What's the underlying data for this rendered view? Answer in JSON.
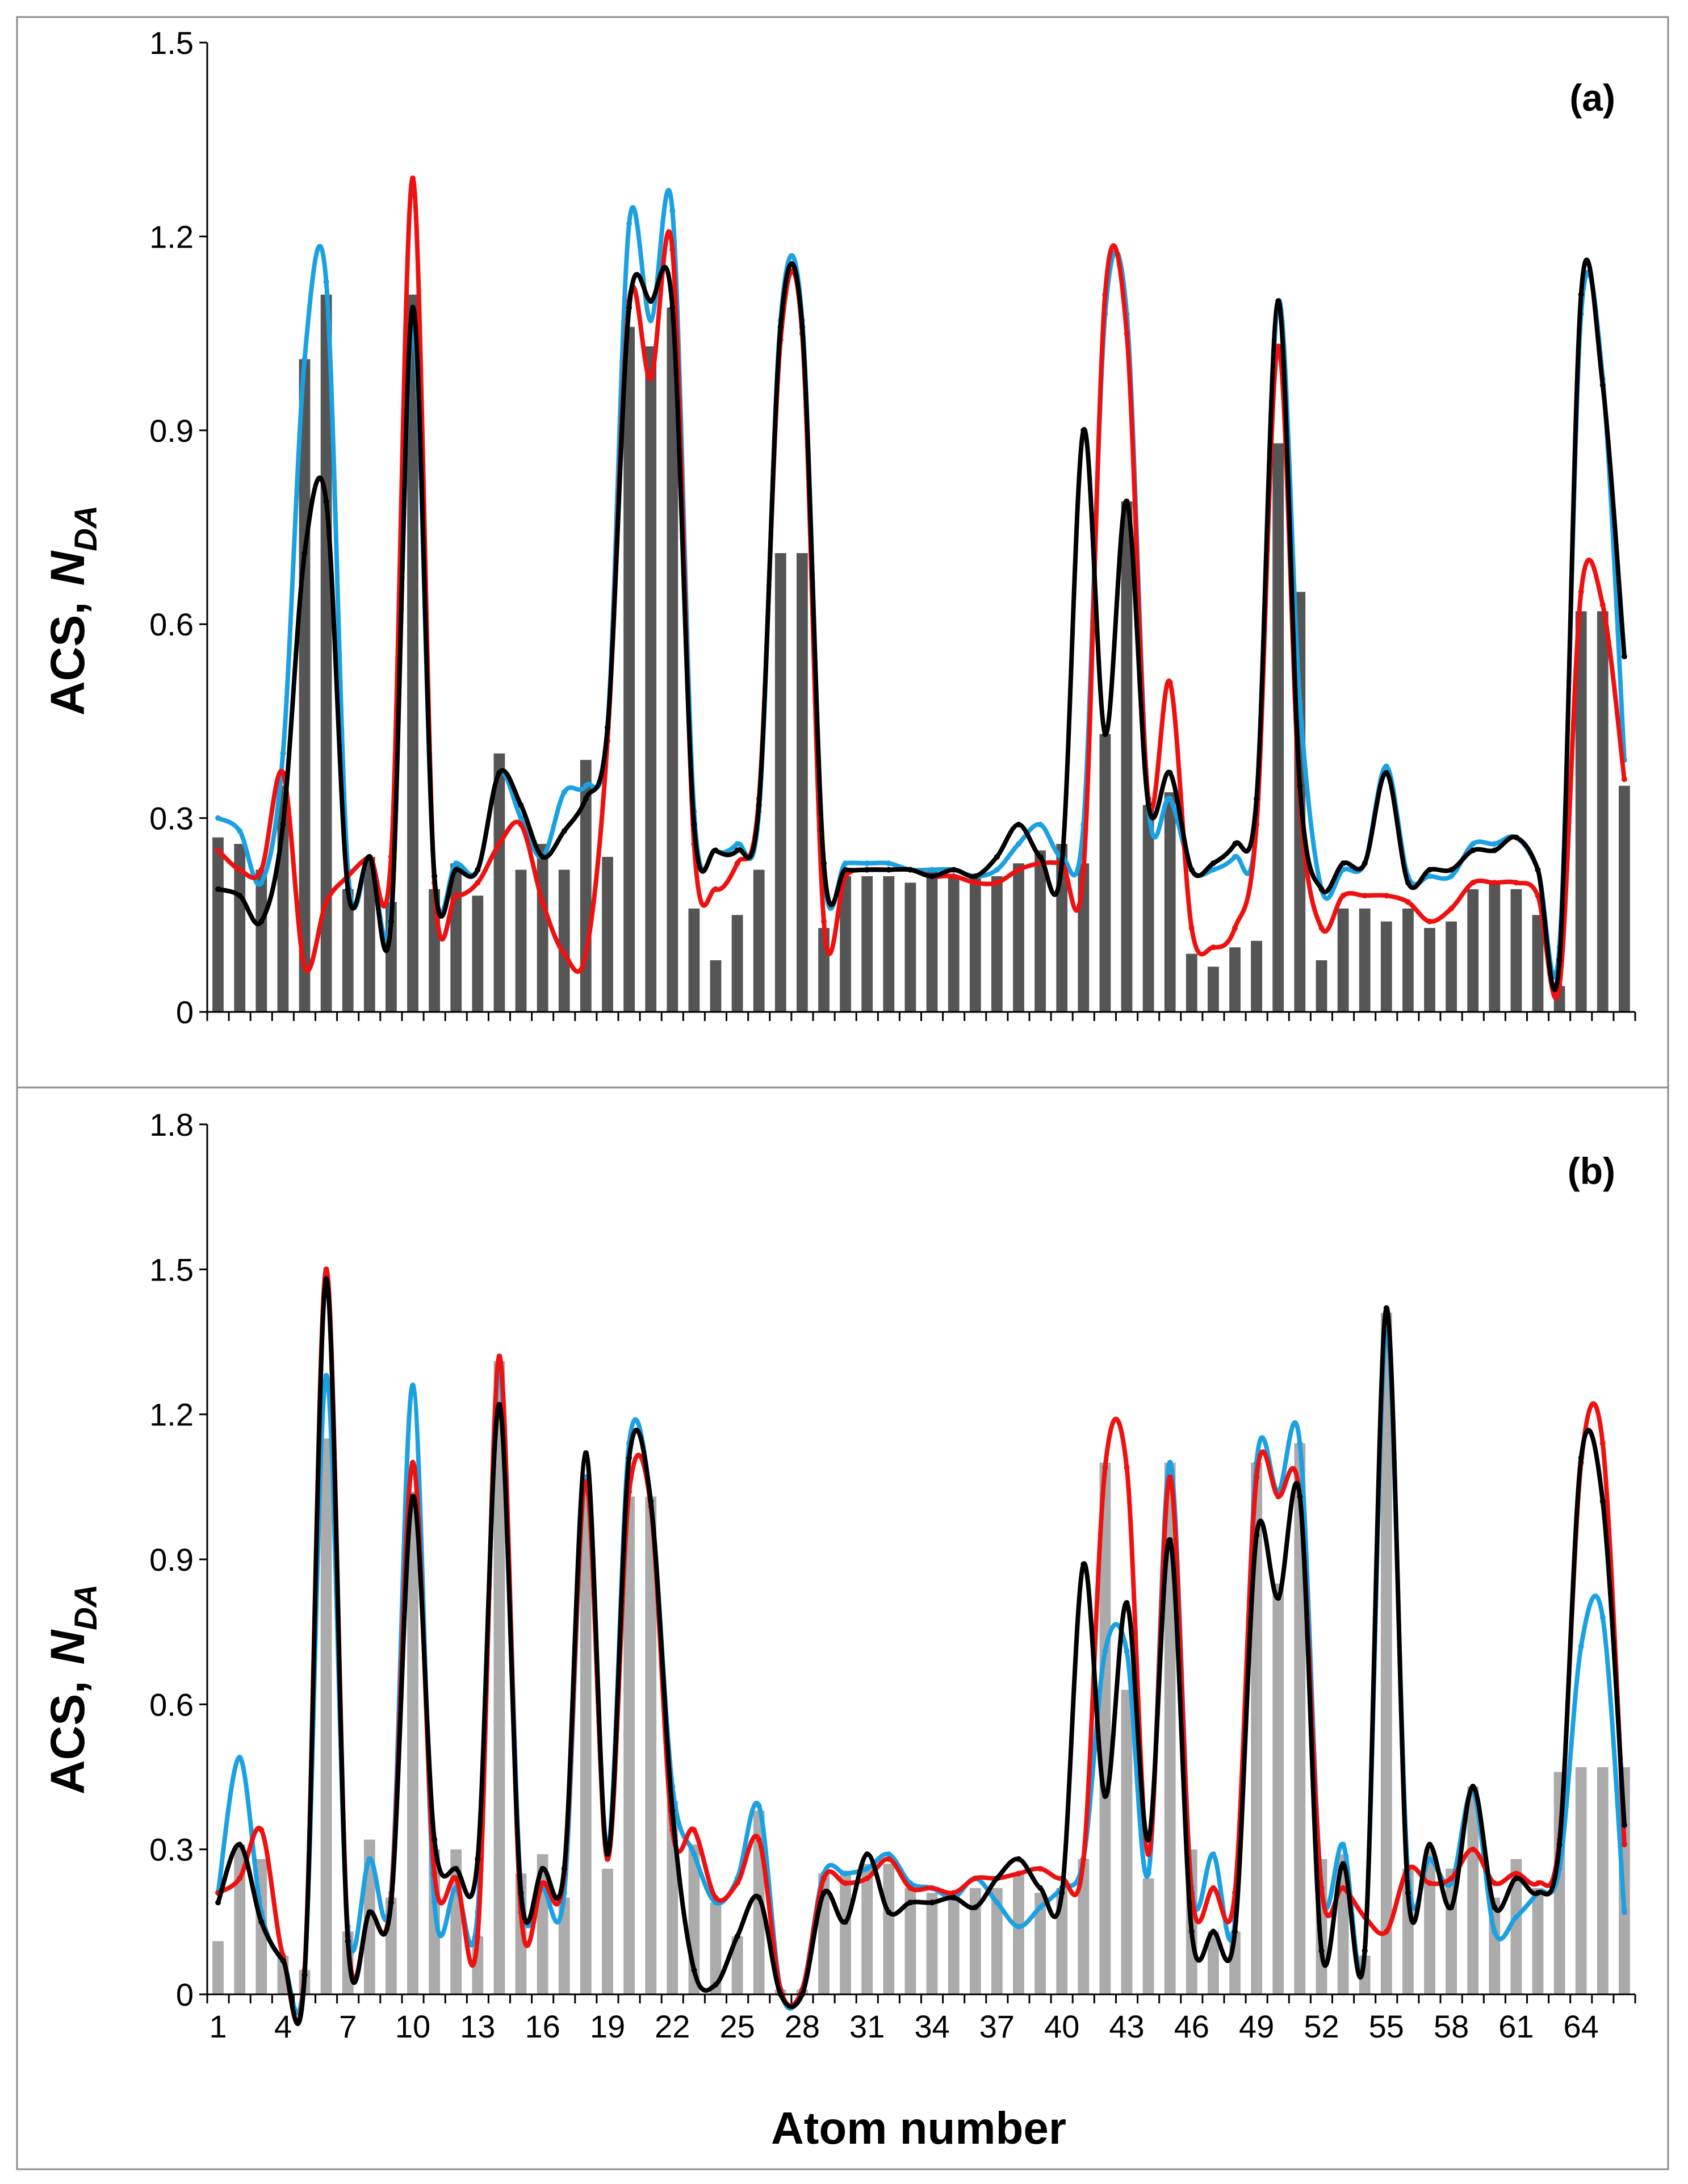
{
  "chart_data": [
    {
      "type": "bar+line",
      "panel_label": "(a)",
      "ylabel": "ACS,",
      "ylabel_italic": "N",
      "ylabel_sub": "DA",
      "xlabel": "",
      "ylim": [
        0,
        1.5
      ],
      "yticks": [
        "0",
        "0.3",
        "0.6",
        "0.9",
        "1.2",
        "1.5"
      ],
      "x_tick_labels_shown": false,
      "n_points": 66,
      "bar_color": "#555555",
      "bars": [
        0.27,
        0.26,
        0.22,
        0.35,
        1.01,
        1.11,
        0.19,
        0.24,
        0.17,
        1.11,
        0.19,
        0.23,
        0.18,
        0.4,
        0.22,
        0.26,
        0.22,
        0.39,
        0.24,
        1.06,
        1.03,
        1.09,
        0.16,
        0.08,
        0.15,
        0.22,
        0.71,
        0.71,
        0.13,
        0.21,
        0.21,
        0.21,
        0.2,
        0.22,
        0.21,
        0.21,
        0.21,
        0.23,
        0.25,
        0.26,
        0.23,
        0.43,
        0.79,
        0.32,
        0.34,
        0.09,
        0.07,
        0.1,
        0.11,
        0.88,
        0.65,
        0.08,
        0.16,
        0.16,
        0.14,
        0.16,
        0.13,
        0.14,
        0.19,
        0.2,
        0.19,
        0.15,
        0.04,
        0.62,
        0.62,
        0.35
      ],
      "series": [
        {
          "name": "blue",
          "color": "#1ba1e2",
          "values": [
            0.3,
            0.28,
            0.2,
            0.4,
            1.01,
            1.13,
            0.22,
            0.24,
            0.16,
            1.06,
            0.21,
            0.23,
            0.22,
            0.37,
            0.3,
            0.24,
            0.34,
            0.35,
            0.44,
            1.22,
            1.07,
            1.24,
            0.31,
            0.25,
            0.26,
            0.31,
            1.07,
            1.07,
            0.22,
            0.23,
            0.23,
            0.23,
            0.22,
            0.22,
            0.22,
            0.21,
            0.22,
            0.26,
            0.29,
            0.24,
            0.29,
            1.08,
            1.08,
            0.32,
            0.33,
            0.22,
            0.22,
            0.24,
            0.29,
            1.1,
            0.48,
            0.19,
            0.22,
            0.23,
            0.38,
            0.21,
            0.21,
            0.21,
            0.26,
            0.26,
            0.27,
            0.22,
            0.1,
            1.08,
            0.98,
            0.39
          ]
        },
        {
          "name": "red",
          "color": "#ee1111",
          "values": [
            0.25,
            0.22,
            0.22,
            0.37,
            0.07,
            0.17,
            0.21,
            0.24,
            0.24,
            1.29,
            0.2,
            0.18,
            0.2,
            0.26,
            0.29,
            0.17,
            0.09,
            0.09,
            0.42,
            1.1,
            0.98,
            1.18,
            0.26,
            0.19,
            0.23,
            0.33,
            1.04,
            1.05,
            0.14,
            0.21,
            0.22,
            0.22,
            0.22,
            0.21,
            0.21,
            0.2,
            0.2,
            0.22,
            0.23,
            0.23,
            0.22,
            1.11,
            1.05,
            0.33,
            0.51,
            0.13,
            0.1,
            0.13,
            0.29,
            1.03,
            0.33,
            0.13,
            0.18,
            0.18,
            0.18,
            0.17,
            0.14,
            0.16,
            0.2,
            0.2,
            0.2,
            0.18,
            0.04,
            0.65,
            0.63,
            0.36
          ]
        },
        {
          "name": "black",
          "color": "#000000",
          "values": [
            0.19,
            0.18,
            0.14,
            0.29,
            0.71,
            0.79,
            0.19,
            0.24,
            0.14,
            1.09,
            0.21,
            0.22,
            0.22,
            0.37,
            0.32,
            0.24,
            0.28,
            0.33,
            0.44,
            1.09,
            1.1,
            1.09,
            0.29,
            0.25,
            0.25,
            0.32,
            1.06,
            1.06,
            0.23,
            0.22,
            0.22,
            0.22,
            0.22,
            0.21,
            0.22,
            0.21,
            0.24,
            0.29,
            0.24,
            0.23,
            0.9,
            0.43,
            0.79,
            0.32,
            0.37,
            0.22,
            0.23,
            0.26,
            0.33,
            1.1,
            0.35,
            0.19,
            0.23,
            0.23,
            0.37,
            0.2,
            0.22,
            0.22,
            0.25,
            0.25,
            0.27,
            0.22,
            0.08,
            1.11,
            0.97,
            0.55
          ]
        }
      ]
    },
    {
      "type": "bar+line",
      "panel_label": "(b)",
      "ylabel": "ACS,",
      "ylabel_italic": "N",
      "ylabel_sub": "DA",
      "xlabel": "Atom number",
      "ylim": [
        0,
        1.8
      ],
      "yticks": [
        "0",
        "0.3",
        "0.6",
        "0.9",
        "1.2",
        "1.5",
        "1.8"
      ],
      "x_tick_labels": [
        "1",
        "4",
        "7",
        "10",
        "13",
        "16",
        "19",
        "22",
        "25",
        "28",
        "31",
        "34",
        "37",
        "40",
        "43",
        "46",
        "49",
        "52",
        "55",
        "58",
        "61",
        "64"
      ],
      "n_points": 66,
      "bar_color": "#ababab",
      "bars": [
        0.11,
        0.31,
        0.28,
        0.08,
        0.05,
        1.15,
        0.13,
        0.32,
        0.2,
        1.04,
        0.3,
        0.3,
        0.12,
        1.31,
        0.25,
        0.29,
        0.2,
        1.07,
        0.26,
        1.03,
        1.03,
        0.4,
        0.31,
        0.19,
        0.12,
        0.38,
        0.01,
        0.01,
        0.25,
        0.25,
        0.27,
        0.27,
        0.22,
        0.21,
        0.21,
        0.22,
        0.22,
        0.25,
        0.21,
        0.22,
        0.28,
        1.1,
        0.63,
        0.24,
        1.1,
        0.3,
        0.13,
        0.13,
        1.1,
        0.85,
        1.14,
        0.28,
        0.29,
        0.08,
        1.41,
        0.26,
        0.3,
        0.26,
        0.43,
        0.2,
        0.28,
        0.22,
        0.46,
        0.47,
        0.47,
        0.47
      ],
      "series": [
        {
          "name": "blue",
          "color": "#1ba1e2",
          "values": [
            0.21,
            0.49,
            0.17,
            0.07,
            0.05,
            1.28,
            0.14,
            0.28,
            0.21,
            1.26,
            0.19,
            0.22,
            0.17,
            1.29,
            0.22,
            0.22,
            0.21,
            1.07,
            0.3,
            1.14,
            1.02,
            0.43,
            0.29,
            0.19,
            0.24,
            0.39,
            0.01,
            0.01,
            0.25,
            0.25,
            0.26,
            0.29,
            0.23,
            0.22,
            0.2,
            0.24,
            0.19,
            0.14,
            0.18,
            0.22,
            0.28,
            0.71,
            0.71,
            0.25,
            1.1,
            0.22,
            0.29,
            0.15,
            1.1,
            1.04,
            1.14,
            0.22,
            0.31,
            0.09,
            1.37,
            0.25,
            0.28,
            0.23,
            0.42,
            0.13,
            0.16,
            0.21,
            0.26,
            0.72,
            0.78,
            0.17
          ]
        },
        {
          "name": "red",
          "color": "#ee1111",
          "values": [
            0.21,
            0.24,
            0.34,
            0.08,
            0.05,
            1.5,
            0.12,
            0.17,
            0.2,
            1.1,
            0.25,
            0.24,
            0.12,
            1.32,
            0.17,
            0.23,
            0.25,
            1.06,
            0.28,
            1.04,
            1.01,
            0.34,
            0.34,
            0.2,
            0.23,
            0.32,
            0.01,
            0.01,
            0.24,
            0.23,
            0.24,
            0.28,
            0.22,
            0.22,
            0.21,
            0.24,
            0.24,
            0.25,
            0.26,
            0.24,
            0.28,
            1.09,
            1.09,
            0.29,
            1.07,
            0.21,
            0.22,
            0.21,
            1.07,
            1.03,
            1.03,
            0.22,
            0.22,
            0.16,
            0.13,
            0.26,
            0.23,
            0.24,
            0.3,
            0.23,
            0.25,
            0.23,
            0.32,
            1.1,
            1.14,
            0.31
          ]
        },
        {
          "name": "black",
          "color": "#000000",
          "values": [
            0.19,
            0.31,
            0.15,
            0.07,
            0.04,
            1.48,
            0.11,
            0.17,
            0.19,
            1.03,
            0.32,
            0.26,
            0.28,
            1.22,
            0.21,
            0.26,
            0.26,
            1.12,
            0.29,
            1.11,
            1.02,
            0.38,
            0.05,
            0.02,
            0.12,
            0.2,
            0.0,
            0.0,
            0.21,
            0.15,
            0.29,
            0.17,
            0.19,
            0.19,
            0.2,
            0.18,
            0.24,
            0.28,
            0.22,
            0.21,
            0.89,
            0.41,
            0.81,
            0.32,
            0.94,
            0.13,
            0.13,
            0.13,
            0.95,
            0.82,
            1.03,
            0.09,
            0.27,
            0.09,
            1.42,
            0.21,
            0.31,
            0.18,
            0.43,
            0.18,
            0.24,
            0.21,
            0.31,
            1.11,
            1.02,
            0.35
          ]
        }
      ]
    }
  ]
}
